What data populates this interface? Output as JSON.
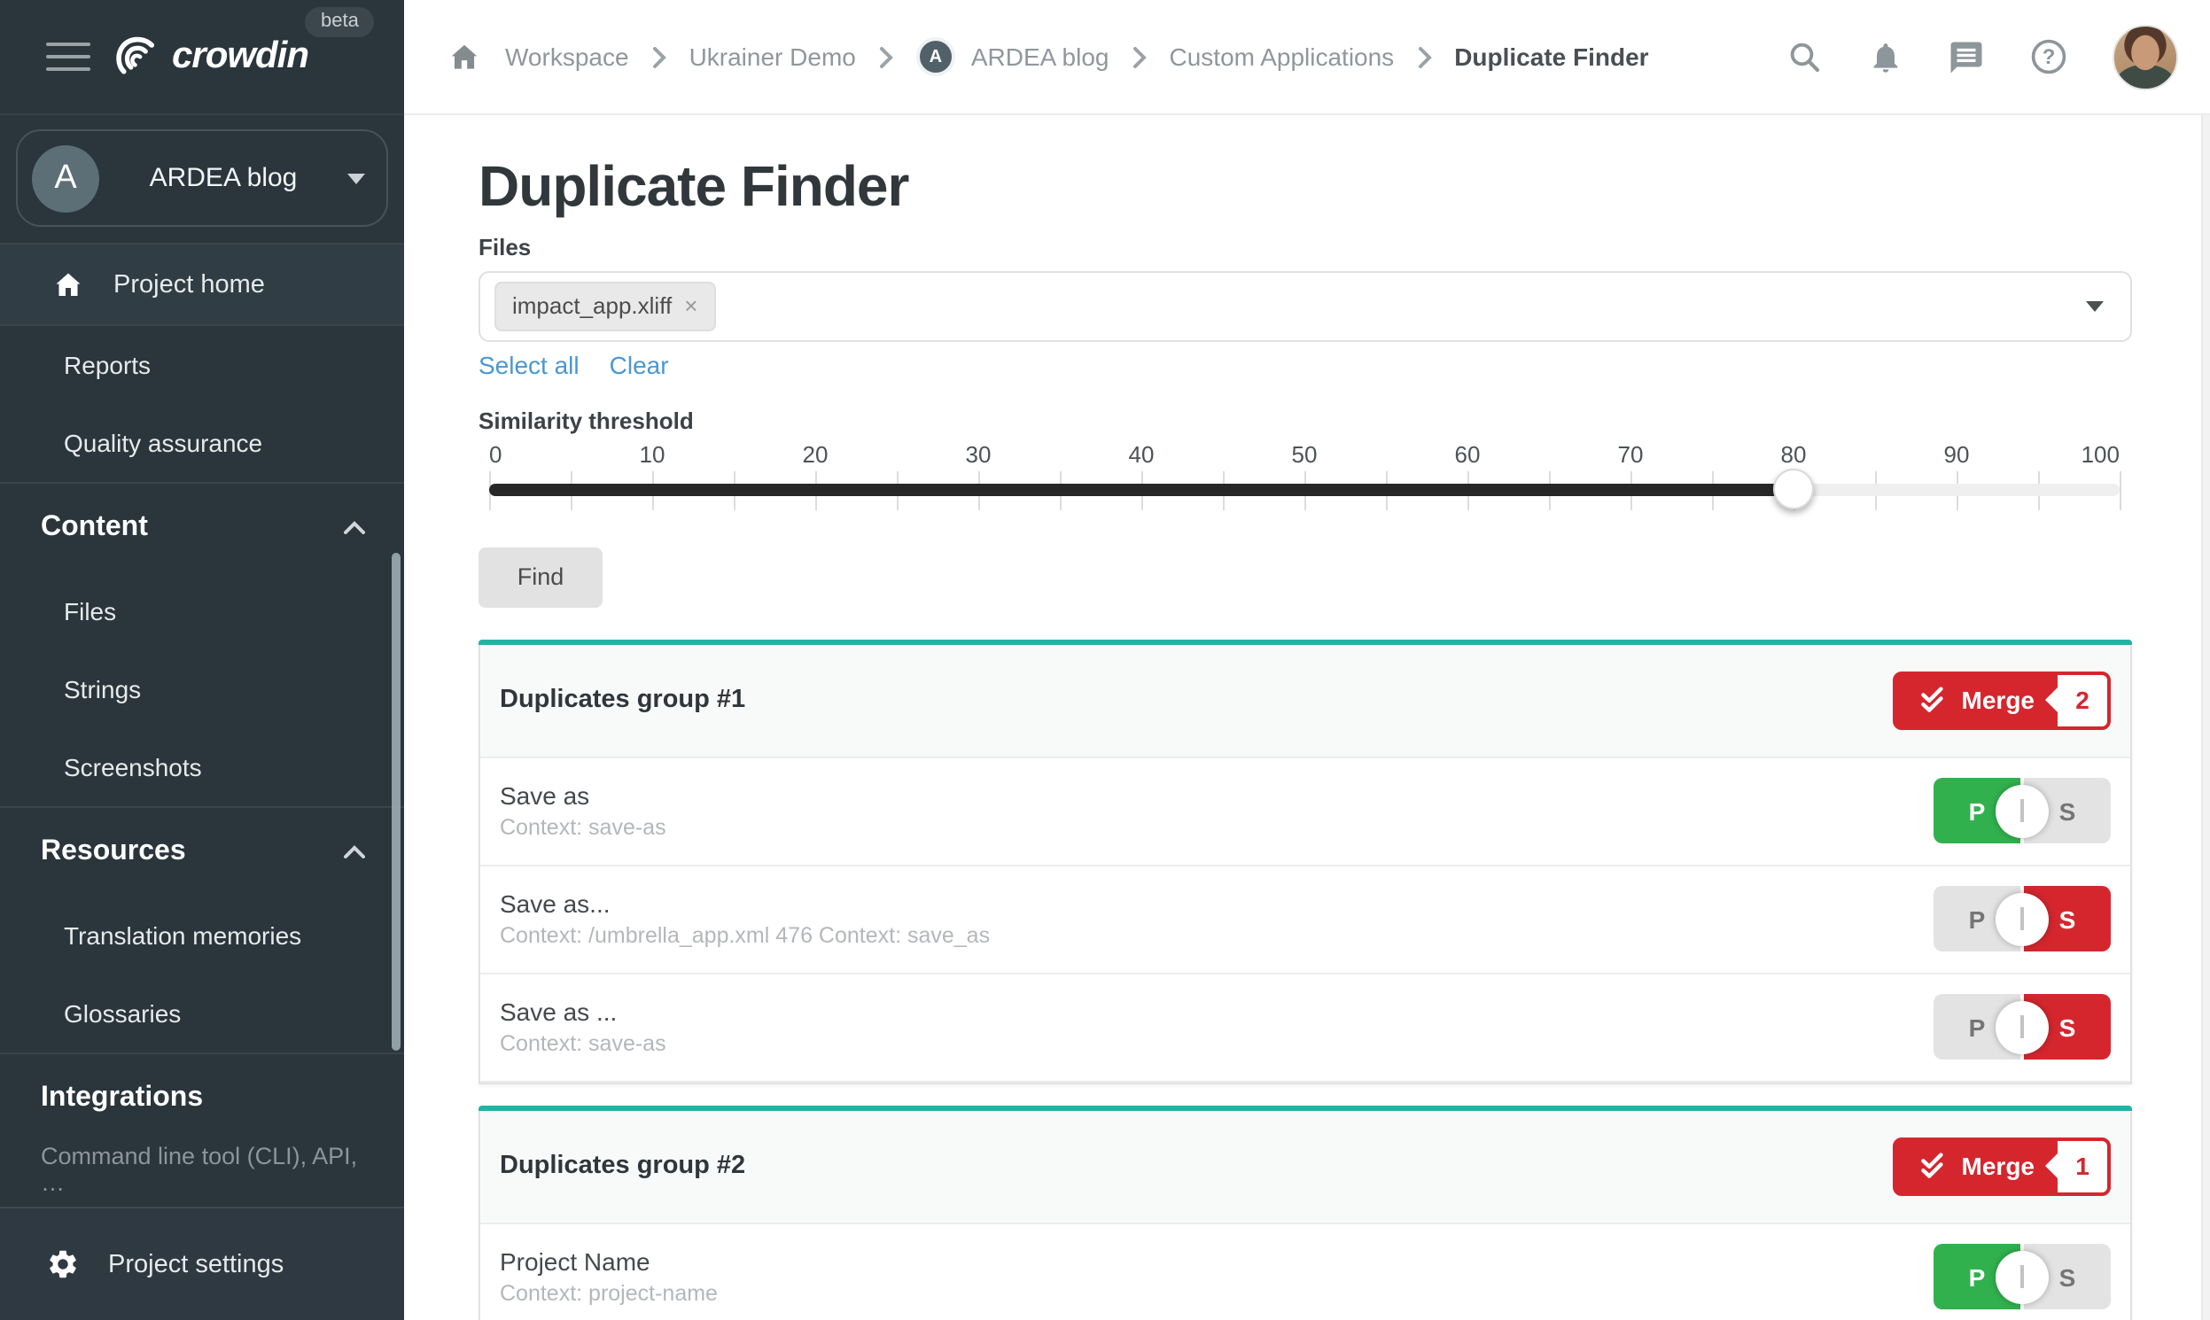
{
  "topbar": {
    "breadcrumb": {
      "items": [
        {
          "label": "Workspace"
        },
        {
          "label": "Ukrainer Demo"
        },
        {
          "label": "ARDEA blog",
          "avatar_initial": "A"
        },
        {
          "label": "Custom Applications"
        },
        {
          "label": "Duplicate Finder"
        }
      ]
    },
    "icons": {
      "home": "home-icon",
      "search": "search-icon",
      "notifications": "bell-icon",
      "messages": "chat-icon",
      "help": "help-icon",
      "help_glyph": "?",
      "user": "user-avatar"
    }
  },
  "sidebar": {
    "logo_text": "crowdin",
    "beta_badge": "beta",
    "project_selector": {
      "initial": "A",
      "name": "ARDEA blog"
    },
    "project_home": "Project home",
    "reports": "Reports",
    "quality_assurance": "Quality assurance",
    "content_header": "Content",
    "files": "Files",
    "strings": "Strings",
    "screenshots": "Screenshots",
    "resources_header": "Resources",
    "translation_memories": "Translation memories",
    "glossaries": "Glossaries",
    "integrations_header": "Integrations",
    "integrations_subtitle": "Command line tool (CLI), API, …",
    "project_settings": "Project settings"
  },
  "main": {
    "title": "Duplicate Finder",
    "files_label": "Files",
    "selected_file_tag": "impact_app.xliff",
    "tag_remove_glyph": "×",
    "select_all_label": "Select all",
    "clear_label": "Clear",
    "similarity_label": "Similarity threshold",
    "slider": {
      "min": 0,
      "max": 100,
      "value": 80,
      "tick_labels": [
        "0",
        "10",
        "20",
        "30",
        "40",
        "50",
        "60",
        "70",
        "80",
        "90",
        "100"
      ]
    },
    "find_label": "Find",
    "merge_label": "Merge",
    "toggle": {
      "primary_label": "P",
      "secondary_label": "S"
    },
    "groups": [
      {
        "title": "Duplicates group #1",
        "merge_count": "2",
        "rows": [
          {
            "title": "Save as",
            "context": "Context: save-as",
            "selected": "P"
          },
          {
            "title": "Save as...",
            "context": "Context: /umbrella_app.xml 476 Context: save_as",
            "selected": "S"
          },
          {
            "title": "Save as ...",
            "context": "Context: save-as",
            "selected": "S"
          }
        ]
      },
      {
        "title": "Duplicates group #2",
        "merge_count": "1",
        "rows": [
          {
            "title": "Project Name",
            "context": "Context: project-name",
            "selected": "P"
          }
        ]
      }
    ]
  },
  "colors": {
    "teal": "#22b3a4",
    "red": "#d5262e",
    "green": "#31b14e",
    "link_blue": "#4a97d2"
  }
}
